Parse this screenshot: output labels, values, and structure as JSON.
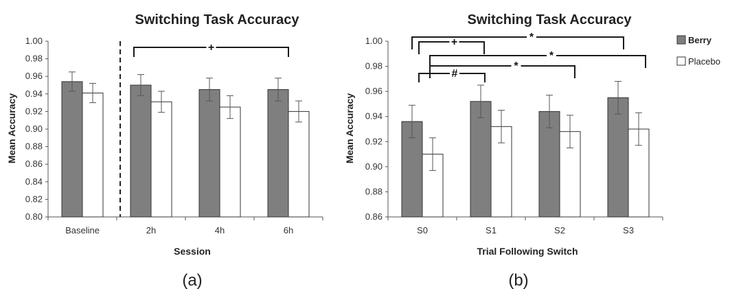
{
  "colors": {
    "berry": "#7f7f7f",
    "placebo": "#ffffff",
    "bar_stroke": "#333333",
    "bracket": "#1a1a1a"
  },
  "legend": [
    {
      "name": "Berry",
      "color": "#7f7f7f"
    },
    {
      "name": "Placebo",
      "color": "#ffffff"
    }
  ],
  "chart_data": [
    {
      "type": "bar",
      "panel_label": "(a)",
      "title": "Switching Task Accuracy",
      "xlabel": "Session",
      "ylabel": "Mean Accuracy",
      "ylim": [
        0.8,
        1.0
      ],
      "yticks": [
        "0.80",
        "0.82",
        "0.84",
        "0.86",
        "0.88",
        "0.90",
        "0.92",
        "0.94",
        "0.96",
        "0.98",
        "1.00"
      ],
      "categories": [
        "Baseline",
        "2h",
        "4h",
        "6h"
      ],
      "series": [
        {
          "name": "Berry",
          "values": [
            0.954,
            0.95,
            0.945,
            0.945
          ],
          "errors": [
            0.011,
            0.012,
            0.013,
            0.013
          ]
        },
        {
          "name": "Placebo",
          "values": [
            0.941,
            0.931,
            0.925,
            0.92
          ],
          "errors": [
            0.011,
            0.012,
            0.013,
            0.012
          ]
        }
      ],
      "divider_after_category": 0,
      "significance": [
        {
          "from": 1,
          "to": 3,
          "label": "+"
        }
      ]
    },
    {
      "type": "bar",
      "panel_label": "(b)",
      "title": "Switching Task Accuracy",
      "xlabel": "Trial Following Switch",
      "ylabel": "Mean Accuracy",
      "ylim": [
        0.86,
        1.0
      ],
      "yticks": [
        "0.86",
        "0.88",
        "0.90",
        "0.92",
        "0.94",
        "0.96",
        "0.98",
        "1.00"
      ],
      "categories": [
        "S0",
        "S1",
        "S2",
        "S3"
      ],
      "series": [
        {
          "name": "Berry",
          "values": [
            0.936,
            0.952,
            0.944,
            0.955
          ],
          "errors": [
            0.013,
            0.013,
            0.013,
            0.013
          ]
        },
        {
          "name": "Placebo",
          "values": [
            0.91,
            0.932,
            0.928,
            0.93
          ],
          "errors": [
            0.013,
            0.013,
            0.013,
            0.013
          ]
        }
      ],
      "significance": [
        {
          "from": 0,
          "to": 3,
          "label": "*"
        },
        {
          "from": 0,
          "to": 1,
          "label": "+"
        },
        {
          "from": 0,
          "to": 3,
          "label": "*"
        },
        {
          "from": 0,
          "to": 2,
          "label": "*"
        },
        {
          "from": 0,
          "to": 1,
          "label": "#"
        }
      ]
    }
  ]
}
